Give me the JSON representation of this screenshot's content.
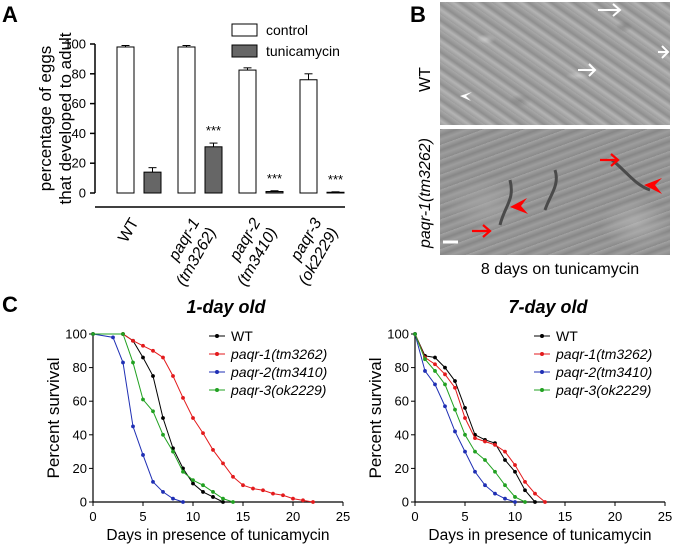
{
  "panels": {
    "a": "A",
    "b": "B",
    "c": "C"
  },
  "panel_b": {
    "wt_label": "WT",
    "mutant_label": "paqr-1(tm3262)",
    "caption": "8 days on tunicamycin"
  },
  "chart_data": [
    {
      "type": "bar",
      "panel": "A",
      "ylabel": [
        "percentage of eggs",
        "that developed to adult"
      ],
      "ylim": [
        0,
        100
      ],
      "yticks": [
        0,
        20,
        40,
        60,
        80,
        100
      ],
      "colors": {
        "control": "#ffffff",
        "tunicamycin": "#666666"
      },
      "categories": [
        {
          "lines": [
            "WT"
          ],
          "italic": false
        },
        {
          "lines": [
            "paqr-1",
            "(tm3262)"
          ],
          "italic": true
        },
        {
          "lines": [
            "paqr-2",
            "(tm3410)"
          ],
          "italic": true
        },
        {
          "lines": [
            "paqr-3",
            "(ok2229)"
          ],
          "italic": true
        }
      ],
      "series": [
        {
          "name": "control",
          "values": [
            98,
            98,
            82.5,
            76
          ],
          "errors": [
            1,
            1,
            1.5,
            4
          ]
        },
        {
          "name": "tunicamycin",
          "values": [
            14,
            31,
            1,
            0.5
          ],
          "errors": [
            3,
            2.5,
            0.5,
            0.3
          ]
        }
      ],
      "annotations": [
        "",
        "***",
        "***",
        "***"
      ]
    },
    {
      "type": "line",
      "panel": "C",
      "title": "1-day old",
      "xlabel": "Days in presence of tunicamycin",
      "ylabel": "Percent survival",
      "xlim": [
        0,
        25
      ],
      "ylim": [
        0,
        100
      ],
      "xticks": [
        0,
        5,
        10,
        15,
        20,
        25
      ],
      "yticks": [
        0,
        20,
        40,
        60,
        80,
        100
      ],
      "series": [
        {
          "name": "WT",
          "italic": false,
          "color": "#000000",
          "x": [
            0,
            3,
            4,
            5,
            6,
            7,
            8,
            9,
            10,
            11,
            12,
            13
          ],
          "y": [
            100,
            100,
            96,
            86,
            75,
            50,
            32,
            20,
            11,
            6,
            3,
            0
          ]
        },
        {
          "name": "paqr-1(tm3262)",
          "italic": true,
          "color": "#e31a1c",
          "x": [
            0,
            3,
            4,
            5,
            6,
            7,
            8,
            9,
            10,
            11,
            12,
            13,
            14,
            15,
            16,
            17,
            18,
            19,
            20,
            21,
            22
          ],
          "y": [
            100,
            100,
            96,
            93,
            90,
            86,
            75,
            62,
            50,
            41,
            31,
            23,
            15,
            10,
            8,
            7,
            5,
            4,
            2,
            1,
            0
          ]
        },
        {
          "name": "paqr-2(tm3410)",
          "italic": true,
          "color": "#1f2fb4",
          "x": [
            0,
            2,
            3,
            4,
            5,
            6,
            7,
            8,
            9
          ],
          "y": [
            100,
            98,
            83,
            45,
            28,
            12,
            6,
            2,
            0
          ]
        },
        {
          "name": "paqr-3(ok2229)",
          "italic": true,
          "color": "#21a121",
          "x": [
            0,
            3,
            4,
            5,
            6,
            7,
            8,
            9,
            10,
            11,
            12,
            13,
            14
          ],
          "y": [
            100,
            100,
            83,
            61,
            54,
            40,
            30,
            18,
            13,
            10,
            6,
            2,
            0
          ]
        }
      ]
    },
    {
      "type": "line",
      "panel": "C",
      "title": "7-day old",
      "xlabel": "Days in presence of tunicamycin",
      "ylabel": "Percent survival",
      "xlim": [
        0,
        25
      ],
      "ylim": [
        0,
        100
      ],
      "xticks": [
        0,
        5,
        10,
        15,
        20,
        25
      ],
      "yticks": [
        0,
        20,
        40,
        60,
        80,
        100
      ],
      "series": [
        {
          "name": "WT",
          "italic": false,
          "color": "#000000",
          "x": [
            0,
            1,
            2,
            3,
            4,
            5,
            6,
            7,
            8,
            9,
            10,
            11,
            12
          ],
          "y": [
            100,
            87,
            86,
            80,
            72,
            56,
            40,
            37,
            35,
            25,
            18,
            7,
            0
          ]
        },
        {
          "name": "paqr-1(tm3262)",
          "italic": true,
          "color": "#e31a1c",
          "x": [
            0,
            1,
            2,
            3,
            4,
            5,
            6,
            7,
            8,
            9,
            10,
            11,
            12,
            13
          ],
          "y": [
            100,
            86,
            82,
            76,
            68,
            50,
            38,
            36,
            34,
            30,
            22,
            12,
            5,
            0
          ]
        },
        {
          "name": "paqr-2(tm3410)",
          "italic": true,
          "color": "#1f2fb4",
          "x": [
            0,
            1,
            2,
            3,
            4,
            5,
            6,
            7,
            8,
            9,
            10
          ],
          "y": [
            100,
            78,
            70,
            57,
            42,
            30,
            18,
            10,
            5,
            2,
            0
          ]
        },
        {
          "name": "paqr-3(ok2229)",
          "italic": true,
          "color": "#21a121",
          "x": [
            0,
            1,
            2,
            3,
            4,
            5,
            6,
            7,
            8,
            9,
            10,
            11
          ],
          "y": [
            100,
            85,
            78,
            70,
            55,
            40,
            30,
            25,
            18,
            10,
            3,
            0
          ]
        }
      ]
    }
  ]
}
